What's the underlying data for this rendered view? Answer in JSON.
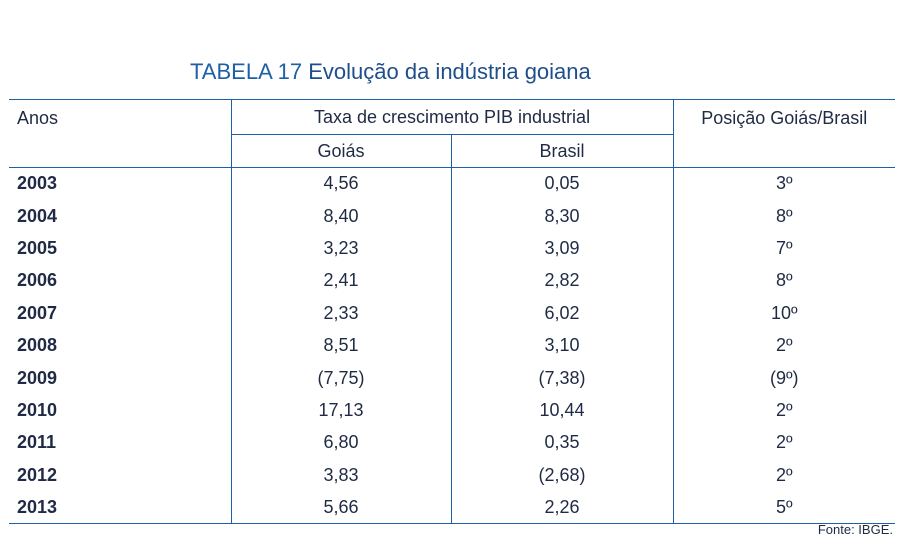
{
  "title": {
    "prefix": "TABELA 17",
    "name": "Evolução da indústria goiana"
  },
  "table": {
    "header": {
      "anos": "Anos",
      "taxa": "Taxa de crescimento PIB industrial",
      "goias": "Goiás",
      "brasil": "Brasil",
      "posicao": "Posição Goiás/Brasil"
    },
    "rows": [
      {
        "ano": "2003",
        "goias": "4,56",
        "brasil": "0,05",
        "posicao": "3º"
      },
      {
        "ano": "2004",
        "goias": "8,40",
        "brasil": "8,30",
        "posicao": "8º"
      },
      {
        "ano": "2005",
        "goias": "3,23",
        "brasil": "3,09",
        "posicao": "7º"
      },
      {
        "ano": "2006",
        "goias": "2,41",
        "brasil": "2,82",
        "posicao": "8º"
      },
      {
        "ano": "2007",
        "goias": "2,33",
        "brasil": "6,02",
        "posicao": "10º"
      },
      {
        "ano": "2008",
        "goias": "8,51",
        "brasil": "3,10",
        "posicao": "2º"
      },
      {
        "ano": "2009",
        "goias": "(7,75)",
        "brasil": "(7,38)",
        "posicao": "(9º)"
      },
      {
        "ano": "2010",
        "goias": "17,13",
        "brasil": "10,44",
        "posicao": "2º"
      },
      {
        "ano": "2011",
        "goias": "6,80",
        "brasil": "0,35",
        "posicao": "2º"
      },
      {
        "ano": "2012",
        "goias": "3,83",
        "brasil": "(2,68)",
        "posicao": "2º"
      },
      {
        "ano": "2013",
        "goias": "5,66",
        "brasil": "2,26",
        "posicao": "5º"
      }
    ]
  },
  "source": "Fonte: IBGE."
}
